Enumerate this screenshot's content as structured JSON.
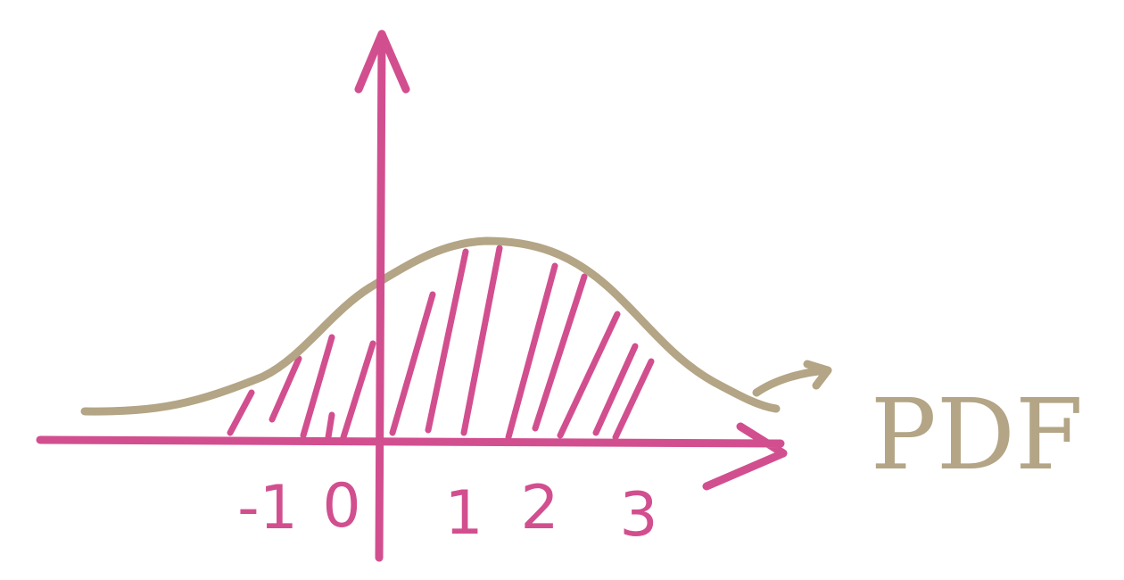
{
  "axis_labels": [
    "-1",
    "0",
    "1",
    "2",
    "3"
  ],
  "curve_label": "PDF"
}
